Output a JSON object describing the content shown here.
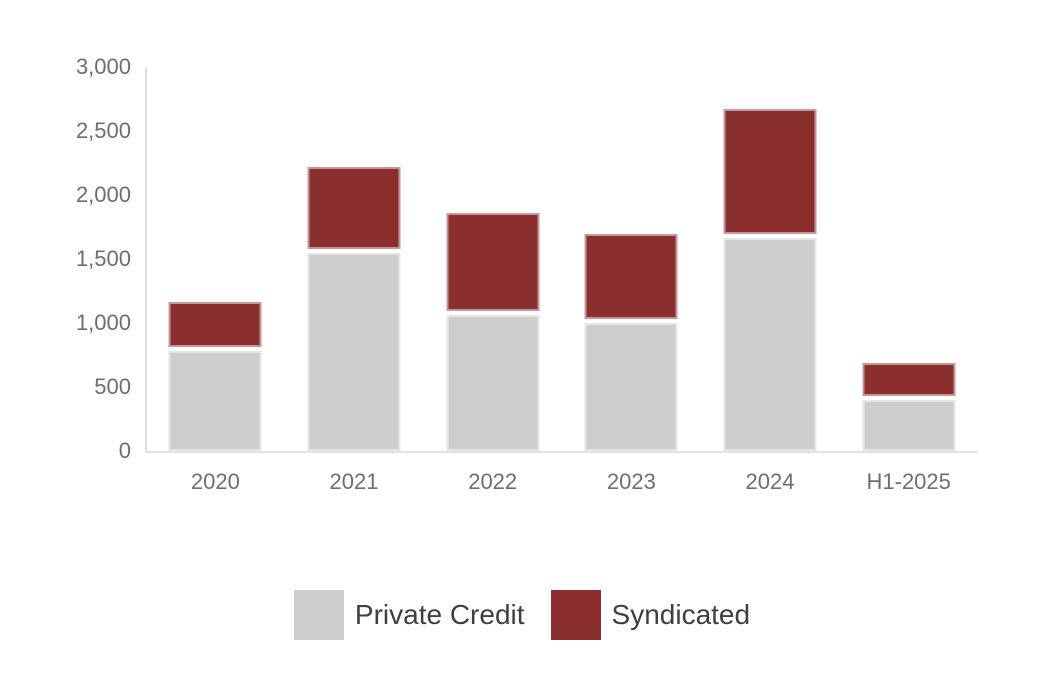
{
  "chart_data": {
    "type": "bar",
    "stacked": true,
    "title": "",
    "xlabel": "",
    "ylabel": "",
    "categories": [
      "2020",
      "2021",
      "2022",
      "2023",
      "2024",
      "H1-2025"
    ],
    "series": [
      {
        "name": "Private Credit",
        "color": "#cdcdcb",
        "values": [
          780,
          1545,
          1060,
          1000,
          1665,
          400
        ]
      },
      {
        "name": "Syndicated",
        "color": "#8a2f2e",
        "values": [
          385,
          675,
          800,
          695,
          1005,
          285
        ]
      }
    ],
    "totals": [
      1165,
      2220,
      1860,
      1695,
      2670,
      685
    ],
    "ylim": [
      0,
      3000
    ],
    "y_tick_step": 500,
    "y_ticks_top_to_bottom": [
      "3,000",
      "2,500",
      "2,000",
      "1,500",
      "1,000",
      "500",
      "0"
    ],
    "grid": false,
    "legend_position": "bottom"
  },
  "colors": {
    "background": "#ffffff",
    "axis_line": "#dedede",
    "baseline": "#e3e3e3",
    "tick_text": "#6e6e6e",
    "legend_text": "#3f3f3f",
    "bar_private_credit": "#cdcdcb",
    "bar_syndicated": "#8a2f2e"
  }
}
